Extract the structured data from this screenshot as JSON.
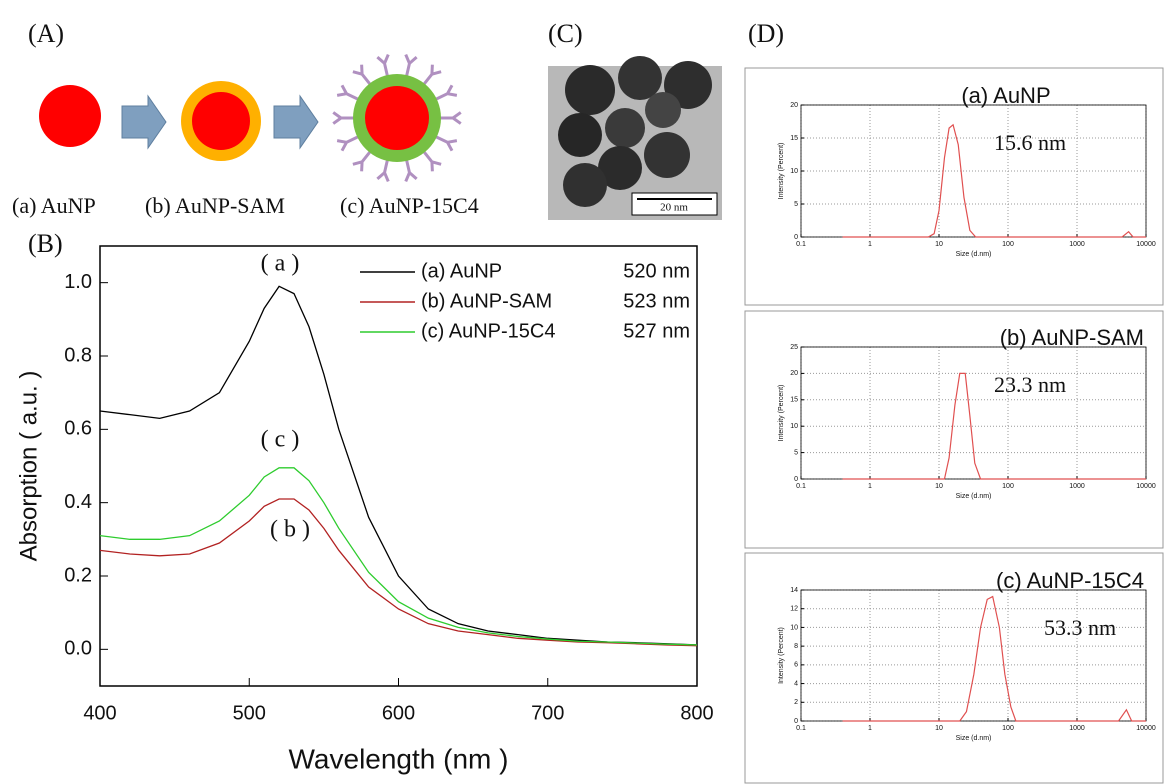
{
  "panel_labels": [
    "(A)",
    "(B)",
    "(C)",
    "(D)"
  ],
  "panel_a": {
    "labels": [
      "(a) AuNP",
      "(b) AuNP-SAM",
      "(c) AuNP-15C4"
    ]
  },
  "panel_c": {
    "scale_bar": "20 nm"
  },
  "chart_data": [
    {
      "type": "line",
      "xlabel": "Wavelength (nm )",
      "ylabel": "Absorption ( a.u. )",
      "x": [
        400,
        420,
        440,
        460,
        480,
        500,
        510,
        520,
        530,
        540,
        550,
        560,
        580,
        600,
        620,
        640,
        660,
        680,
        700,
        720,
        740,
        760,
        780,
        800
      ],
      "series": [
        {
          "name": "(a) AuNP",
          "peak": "520 nm",
          "color": "#000000",
          "values": [
            0.65,
            0.64,
            0.63,
            0.65,
            0.7,
            0.84,
            0.93,
            0.99,
            0.97,
            0.88,
            0.75,
            0.6,
            0.36,
            0.2,
            0.11,
            0.07,
            0.05,
            0.04,
            0.03,
            0.025,
            0.02,
            0.018,
            0.015,
            0.012
          ]
        },
        {
          "name": "(b) AuNP-SAM",
          "peak": "523 nm",
          "color": "#b22222",
          "values": [
            0.27,
            0.26,
            0.255,
            0.26,
            0.29,
            0.35,
            0.39,
            0.41,
            0.41,
            0.38,
            0.33,
            0.27,
            0.17,
            0.11,
            0.07,
            0.05,
            0.04,
            0.03,
            0.025,
            0.02,
            0.018,
            0.015,
            0.012,
            0.01
          ]
        },
        {
          "name": "(c) AuNP-15C4",
          "peak": "527 nm",
          "color": "#2ecc2e",
          "values": [
            0.31,
            0.3,
            0.3,
            0.31,
            0.35,
            0.42,
            0.47,
            0.495,
            0.495,
            0.46,
            0.4,
            0.33,
            0.21,
            0.13,
            0.085,
            0.06,
            0.045,
            0.035,
            0.028,
            0.022,
            0.02,
            0.017,
            0.014,
            0.012
          ]
        }
      ],
      "annotations": [
        "( a )",
        "( c )",
        "( b )"
      ],
      "xlim": [
        400,
        800
      ],
      "xticks": [
        400,
        500,
        600,
        700,
        800
      ],
      "ylim": [
        -0.1,
        1.1
      ],
      "yticks": [
        {
          "value": 0,
          "label": "0.0"
        },
        0.2,
        0.4,
        0.6,
        0.8,
        {
          "value": 1,
          "label": "1.0"
        }
      ],
      "grid": false
    },
    {
      "type": "line",
      "title": "(a) AuNP",
      "annotation": "15.6 nm",
      "xlabel": "Size (d.nm)",
      "ylabel": "Intensity (Percent)",
      "log_x": true,
      "color": "#e05050",
      "grid": true,
      "x": [
        0.4,
        7,
        8.5,
        10,
        12,
        14,
        16,
        19,
        23,
        28,
        34,
        40,
        4500,
        5600,
        6500,
        10000
      ],
      "values": [
        0,
        0,
        0.5,
        4,
        12,
        16.5,
        17,
        14,
        6,
        1,
        0,
        0,
        0,
        0.8,
        0,
        0
      ],
      "xlim": [
        0.1,
        10000
      ],
      "xticks": [
        0.1,
        1,
        10,
        100,
        1000,
        10000
      ],
      "ylim": [
        0,
        20
      ],
      "yticks": [
        0,
        5,
        10,
        15,
        20
      ]
    },
    {
      "type": "line",
      "title": "(b) AuNP-SAM",
      "annotation": "23.3 nm",
      "xlabel": "Size (d.nm)",
      "ylabel": "Intensity (Percent)",
      "log_x": true,
      "color": "#e05050",
      "grid": true,
      "x": [
        0.4,
        12,
        14,
        17,
        20,
        24,
        28,
        33,
        40,
        10000
      ],
      "values": [
        0,
        0,
        4,
        14,
        20,
        20,
        12,
        3,
        0,
        0
      ],
      "xlim": [
        0.1,
        10000
      ],
      "xticks": [
        0.1,
        1,
        10,
        100,
        1000,
        10000
      ],
      "ylim": [
        0,
        25
      ],
      "yticks": [
        0,
        5,
        10,
        15,
        20,
        25
      ]
    },
    {
      "type": "line",
      "title": "(c) AuNP-15C4",
      "annotation": "53.3 nm",
      "xlabel": "Size (d.nm)",
      "ylabel": "Intensity (Percent)",
      "log_x": true,
      "color": "#e05050",
      "grid": true,
      "x": [
        0.4,
        20,
        25,
        32,
        40,
        50,
        60,
        75,
        90,
        110,
        130,
        4000,
        5200,
        6200,
        10000
      ],
      "values": [
        0,
        0,
        1,
        5,
        10,
        13,
        13.3,
        10,
        5,
        1.5,
        0,
        0,
        1.2,
        0,
        0
      ],
      "xlim": [
        0.1,
        10000
      ],
      "xticks": [
        0.1,
        1,
        10,
        100,
        1000,
        10000
      ],
      "ylim": [
        0,
        14
      ],
      "yticks": [
        0,
        2,
        4,
        6,
        8,
        10,
        12,
        14
      ]
    }
  ]
}
